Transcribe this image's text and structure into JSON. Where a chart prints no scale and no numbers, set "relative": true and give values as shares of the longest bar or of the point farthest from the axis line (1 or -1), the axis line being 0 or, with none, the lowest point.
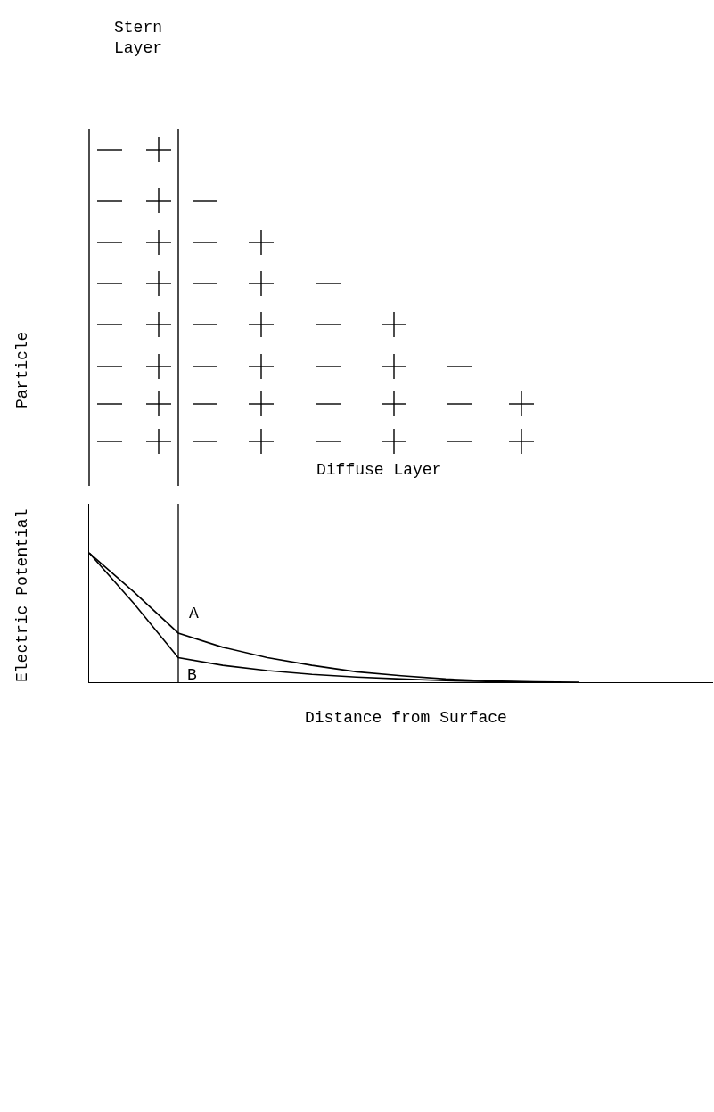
{
  "chart_data": {
    "type": "line",
    "xlabel": "Distance from Surface",
    "ylabel": "Electric Potential",
    "annotations": [
      "Stern\nLayer",
      "Particle",
      "Diffuse Layer"
    ],
    "relative": true,
    "marker": "none",
    "line_style": "solid",
    "categories": [
      null,
      null,
      null,
      null,
      null,
      null,
      null,
      null,
      null,
      null,
      null,
      null,
      null,
      null,
      null
    ],
    "series": [
      {
        "name": "A",
        "color": "#000000",
        "values": [
          1,
          0.7,
          0.38,
          0.27,
          0.19,
          0.13,
          0.08,
          0.05,
          0.025,
          0.01,
          0.003,
          0,
          null,
          null,
          null
        ]
      },
      {
        "name": "B",
        "color": "#000000",
        "values": [
          1,
          0.61,
          0.19,
          0.13,
          0.09,
          0.06,
          0.04,
          0.025,
          0.012,
          0.005,
          0,
          null,
          null,
          null,
          null
        ]
      }
    ]
  }
}
